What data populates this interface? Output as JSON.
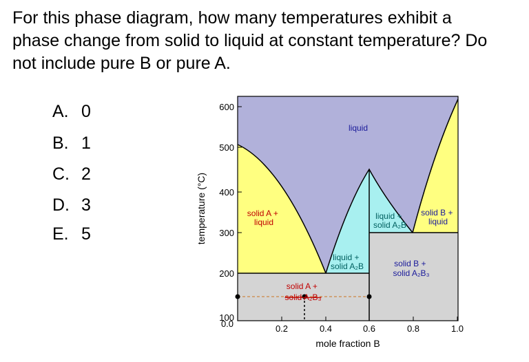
{
  "question": {
    "lines": [
      "For this phase diagram, how many temperatures exhibit a",
      "phase change from solid to liquid at constant temperature? Do",
      "not include pure B or pure A."
    ]
  },
  "options": [
    {
      "letter": "A.",
      "value": "0"
    },
    {
      "letter": "B.",
      "value": "1"
    },
    {
      "letter": "C.",
      "value": "2"
    },
    {
      "letter": "D.",
      "value": "3"
    },
    {
      "letter": "E.",
      "value": "5"
    }
  ],
  "diagram": {
    "xlabel": "mole fraction B",
    "ylabel": "temperature (°C)",
    "x_ticks": [
      "0.0",
      "0.2",
      "0.4",
      "0.6",
      "0.8",
      "1.0"
    ],
    "y_ticks": [
      "100",
      "200",
      "300",
      "400",
      "500",
      "600"
    ],
    "regions": {
      "liquid": "liquid",
      "solidA_liquid": [
        "solid A +",
        "liquid"
      ],
      "liquid_solidA2B_left": [
        "liquid +",
        "solid A₂B"
      ],
      "liquid_solidA2B_right": [
        "liquid +",
        "solid A₂B"
      ],
      "solidB_liquid": [
        "solid B +",
        "liquid"
      ],
      "solidB_solidA2B3": [
        "solid B +",
        "solid A₂B₃"
      ],
      "solidA_solidA2B3": [
        "solid A +",
        "solid A₂B₃"
      ]
    },
    "colors": {
      "liquid": "#b1b1da",
      "solid_liquid": "#ffff80",
      "liquid_compound": "#a8f0f0",
      "two_solid": "#d4d4d4",
      "label_red": "#c00000",
      "label_blue": "#1a1a9a",
      "label_teal": "#006060",
      "dashed": "#cc8844"
    }
  }
}
